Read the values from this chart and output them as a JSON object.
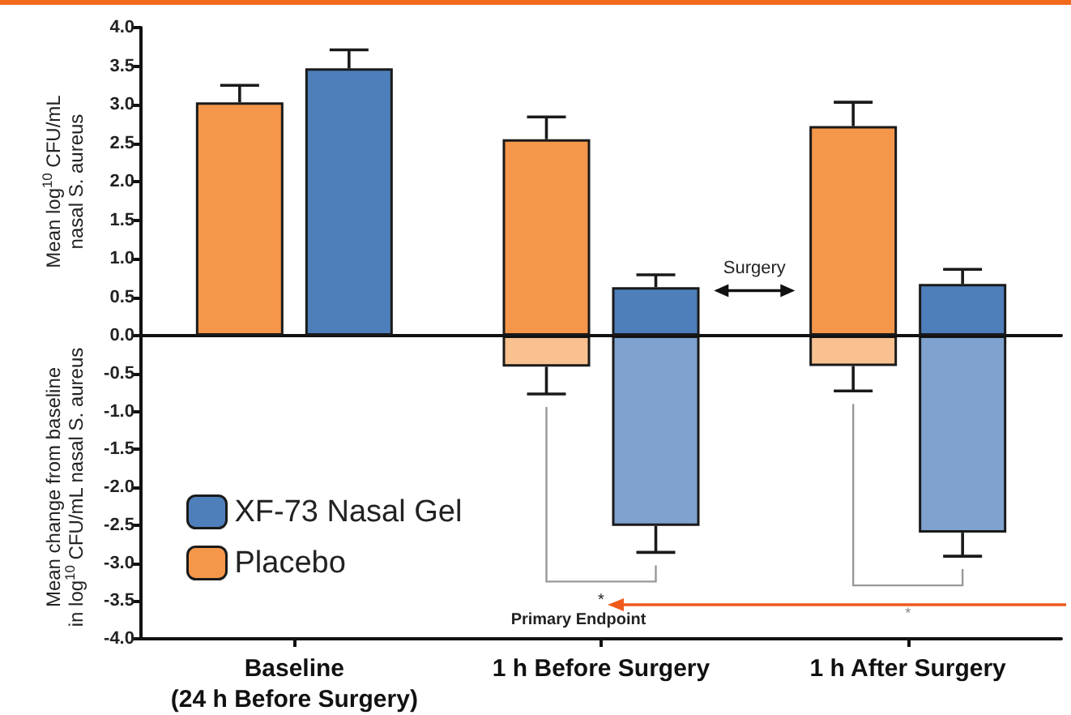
{
  "chart_data": [
    {
      "type": "bar",
      "categories": [
        null,
        null,
        null
      ],
      "ylabel": "Mean log$^{10}$ CFU/mL\nnasal S. aureus",
      "series": [
        {
          "name": "Placebo",
          "color": "#f5974a",
          "values": [
            3.03,
            2.55,
            2.72
          ],
          "errors": [
            0.22,
            0.29,
            0.31
          ]
        },
        {
          "name": "XF-73 Nasal Gel",
          "color": "#4e7fbb",
          "values": [
            3.47,
            0.63,
            0.67
          ],
          "errors": [
            0.24,
            0.16,
            0.19
          ]
        }
      ],
      "ylim": [
        0,
        4
      ],
      "yticks": [
        {
          "value": 0,
          "label": "0.0"
        },
        {
          "value": 0.5,
          "label": "0.5"
        },
        {
          "value": 1,
          "label": "1.0"
        },
        {
          "value": 1.5,
          "label": "1.5"
        },
        {
          "value": 2,
          "label": "2.0"
        },
        {
          "value": 2.5,
          "label": "2.5"
        },
        {
          "value": 3,
          "label": "3.0"
        },
        {
          "value": 3.5,
          "label": "3.5"
        },
        {
          "value": 4,
          "label": "4.0"
        }
      ],
      "tick_labels": "y",
      "annotations": [
        "Surgery"
      ],
      "legend": "bottom left",
      "grid": false
    },
    {
      "type": "bar",
      "categories": [
        "Baseline\n(24 h Before Surgery)",
        "1 h Before Surgery",
        "1 h After Surgery"
      ],
      "ylabel": "Mean change from baseline\nin log$^{10}$ CFU/mL nasal S. aureus",
      "series": [
        {
          "color": "#f8c18f",
          "values": [
            null,
            -0.41,
            -0.4
          ],
          "errors": [
            null,
            0.36,
            0.33
          ]
        },
        {
          "color": "#7fa2cf",
          "values": [
            null,
            -2.51,
            -2.6
          ],
          "errors": [
            null,
            0.35,
            0.31
          ]
        }
      ],
      "ylim": [
        -4,
        0
      ],
      "yticks": [
        {
          "value": -4,
          "label": "-4.0"
        },
        {
          "value": -3.5,
          "label": "-3.5"
        },
        {
          "value": -3,
          "label": "-3.0"
        },
        {
          "value": -2.5,
          "label": "-2.5"
        },
        {
          "value": -2,
          "label": "-2.0"
        },
        {
          "value": -1.5,
          "label": "-1.5"
        },
        {
          "value": -1,
          "label": "-1.0"
        },
        {
          "value": -0.5,
          "label": "-0.5"
        }
      ],
      "annotations": [
        "*",
        "Primary Endpoint",
        "*"
      ],
      "grid": false
    }
  ]
}
